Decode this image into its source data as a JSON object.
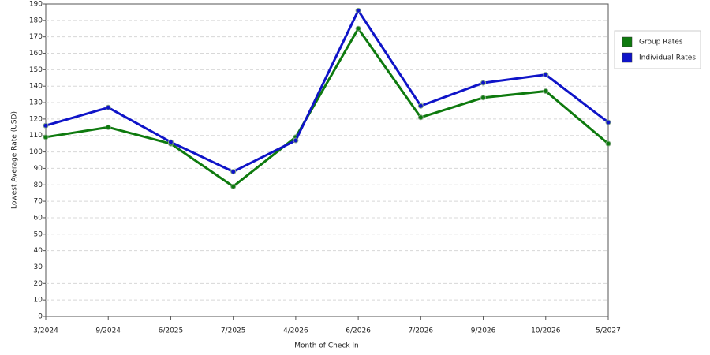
{
  "chart_data": {
    "type": "line",
    "x_label": "Month of Check In",
    "y_label": "Lowest Average Rate (USD)",
    "categories": [
      "3/2024",
      "9/2024",
      "6/2025",
      "7/2025",
      "4/2026",
      "6/2026",
      "7/2026",
      "9/2026",
      "10/2026",
      "5/2027"
    ],
    "series": [
      {
        "name": "Group Rates",
        "color": "#0e7a0e",
        "values": [
          109,
          115,
          105,
          79,
          109,
          175,
          121,
          133,
          137,
          105
        ]
      },
      {
        "name": "Individual Rates",
        "color": "#0f14c8",
        "values": [
          116,
          127,
          106,
          88,
          107,
          186,
          128,
          142,
          147,
          118
        ]
      }
    ],
    "ylim": [
      0,
      190
    ],
    "yticks": [
      0,
      10,
      20,
      30,
      40,
      50,
      60,
      70,
      80,
      90,
      100,
      110,
      120,
      130,
      140,
      150,
      160,
      170,
      180,
      190
    ],
    "grid": true,
    "legend": "right"
  }
}
